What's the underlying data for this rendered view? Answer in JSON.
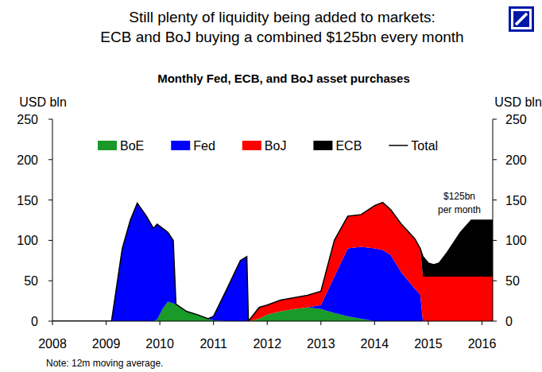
{
  "chart_data": {
    "type": "area",
    "stacked": true,
    "title": [
      "Still plenty of liquidity being added to markets:",
      "ECB and BoJ buying a combined $125bn every month"
    ],
    "subtitle": "Monthly Fed, ECB, and BoJ asset purchases",
    "y_label": "USD bln",
    "y2_label": "USD bln",
    "note": "Note: 12m moving average.",
    "annotations": [
      "$125bn",
      "per month"
    ],
    "legend": "top",
    "grid": false,
    "x": [
      2008.0,
      2009.0,
      2009.1,
      2009.3,
      2009.45,
      2009.58,
      2009.75,
      2009.88,
      2009.95,
      2010.05,
      2010.15,
      2010.25,
      2010.3,
      2010.5,
      2010.7,
      2010.9,
      2011.0,
      2011.25,
      2011.5,
      2011.62,
      2011.65,
      2011.85,
      2012.0,
      2012.25,
      2012.5,
      2012.75,
      2013.0,
      2013.25,
      2013.5,
      2013.75,
      2014.0,
      2014.15,
      2014.3,
      2014.5,
      2014.75,
      2014.85,
      2014.9,
      2015.0,
      2015.1,
      2015.2,
      2015.35,
      2015.6,
      2015.8,
      2016.2
    ],
    "xlim": [
      2008,
      2016.2
    ],
    "xticks": [
      2008,
      2009,
      2010,
      2011,
      2012,
      2013,
      2014,
      2015,
      2016
    ],
    "ylim": [
      0,
      250
    ],
    "yticks": [
      0,
      50,
      100,
      150,
      200,
      250
    ],
    "y2lim": [
      0,
      250
    ],
    "y2ticks": [
      0,
      50,
      100,
      150,
      200,
      250
    ],
    "series": [
      {
        "name": "BoE",
        "color": "#1a9a28",
        "values": [
          0,
          0,
          0,
          0,
          0,
          0,
          0,
          0,
          2,
          15,
          24,
          22,
          21,
          12,
          8,
          3,
          1,
          0,
          0,
          0,
          0,
          3,
          8,
          12,
          15,
          17,
          15,
          10,
          6,
          3,
          0,
          0,
          0,
          0,
          0,
          0,
          0,
          0,
          0,
          0,
          0,
          0,
          0,
          0
        ]
      },
      {
        "name": "Fed",
        "color": "#0000ff",
        "values": [
          0,
          0,
          0,
          90,
          125,
          146,
          130,
          115,
          118,
          100,
          86,
          78,
          0,
          0,
          0,
          0,
          5,
          40,
          75,
          80,
          0,
          0,
          0,
          0,
          0,
          0,
          5,
          45,
          84,
          89,
          90,
          88,
          82,
          60,
          40,
          33,
          0,
          0,
          0,
          0,
          0,
          0,
          0,
          0
        ]
      },
      {
        "name": "BoJ",
        "color": "#ff0000",
        "values": [
          0,
          0,
          0,
          0,
          0,
          0,
          0,
          0,
          0,
          0,
          0,
          0,
          0,
          0,
          0,
          0,
          0,
          0,
          0,
          0,
          0,
          14,
          12,
          14,
          14,
          15,
          17,
          45,
          40,
          40,
          53,
          59,
          56,
          60,
          62,
          57,
          55,
          55,
          55,
          55,
          55,
          55,
          55,
          55
        ]
      },
      {
        "name": "ECB",
        "color": "#000000",
        "values": [
          0,
          0,
          0,
          0,
          0,
          0,
          0,
          0,
          0,
          0,
          0,
          0,
          0,
          0,
          0,
          0,
          0,
          0,
          0,
          0,
          0,
          0,
          0,
          0,
          0,
          0,
          0,
          0,
          0,
          0,
          0,
          0,
          0,
          0,
          0,
          0,
          25,
          17,
          15,
          17,
          30,
          55,
          70,
          70
        ]
      },
      {
        "name": "Total",
        "type": "line",
        "color": "#000000",
        "values": [
          0,
          0,
          0,
          90,
          125,
          146,
          130,
          115,
          120,
          115,
          110,
          100,
          21,
          12,
          8,
          3,
          6,
          40,
          75,
          80,
          0,
          17,
          20,
          26,
          29,
          32,
          37,
          100,
          130,
          132,
          143,
          147,
          138,
          120,
          102,
          90,
          80,
          72,
          70,
          72,
          85,
          110,
          125,
          125
        ]
      }
    ]
  }
}
